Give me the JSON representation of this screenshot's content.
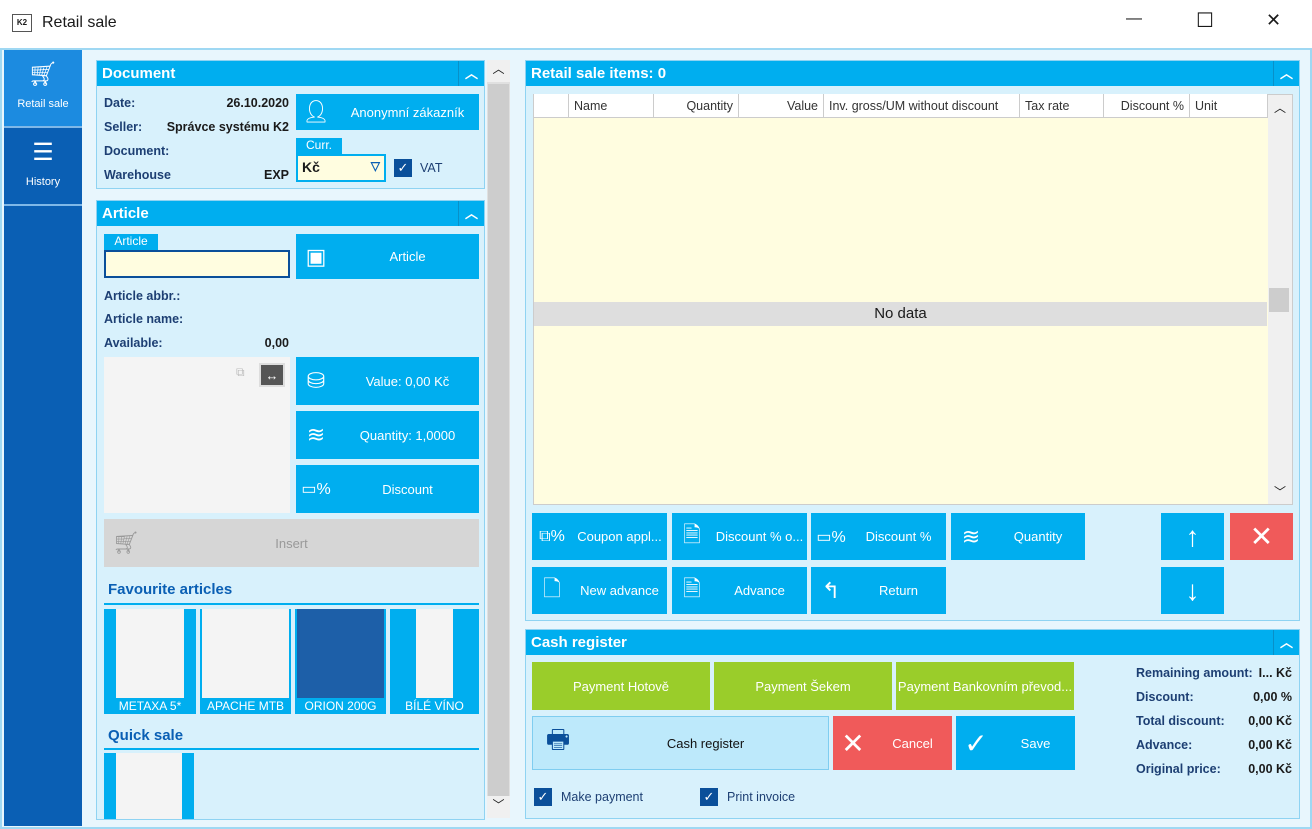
{
  "window": {
    "title": "Retail sale",
    "minimize": "—",
    "maximize": "☐",
    "close": "✕"
  },
  "nav": [
    {
      "label": "Retail sale",
      "icon": "cart-icon"
    },
    {
      "label": "History",
      "icon": "menu-icon"
    }
  ],
  "document": {
    "title": "Document",
    "date_label": "Date:",
    "date": "26.10.2020",
    "seller_label": "Seller:",
    "seller": "Správce systému K2",
    "document_label": "Document:",
    "warehouse_label": "Warehouse",
    "warehouse": "EXP",
    "customer_button": "Anonymní zákazník",
    "curr_label": "Curr.",
    "currency": "Kč",
    "vat_label": "VAT",
    "vat_checked": true
  },
  "article": {
    "title": "Article",
    "input_label": "Article",
    "input_value": "",
    "article_button": "Article",
    "abbr_label": "Article abbr.:",
    "name_label": "Article name:",
    "available_label": "Available:",
    "available": "0,00",
    "value_button": "Value: 0,00 Kč",
    "quantity_button": "Quantity: 1,0000",
    "discount_button": "Discount",
    "insert_button": "Insert"
  },
  "favourites": {
    "title": "Favourite articles",
    "items": [
      "METAXA 5*",
      "APACHE MTB",
      "ORION 200G",
      "BÍLÉ VÍNO"
    ]
  },
  "quick_sale": {
    "title": "Quick sale"
  },
  "items": {
    "title": "Retail sale items: 0",
    "columns": [
      "Name",
      "Quantity",
      "Value",
      "Inv. gross/UM without discount",
      "Tax rate",
      "Discount %",
      "Unit"
    ],
    "empty": "No data"
  },
  "actions": {
    "coupon": "Coupon appl...",
    "discount_o": "Discount % o...",
    "discount_pct": "Discount %",
    "quantity": "Quantity",
    "new_advance": "New advance",
    "advance": "Advance",
    "return": "Return"
  },
  "cash": {
    "title": "Cash register",
    "pay_cash": "Payment Hotově",
    "pay_check": "Payment Šekem",
    "pay_bank": "Payment Bankovním převod...",
    "register": "Cash register",
    "cancel": "Cancel",
    "save": "Save",
    "make_payment": "Make payment",
    "print_invoice": "Print invoice",
    "summary": [
      {
        "label": "Remaining amount:",
        "value": "I... Kč"
      },
      {
        "label": "Discount:",
        "value": "0,00 %"
      },
      {
        "label": "Total discount:",
        "value": "0,00 Kč"
      },
      {
        "label": "Advance:",
        "value": "0,00 Kč"
      },
      {
        "label": "Original price:",
        "value": "0,00 Kč"
      }
    ]
  },
  "colors": {
    "accent": "#00aeef",
    "nav": "#0a5fb4",
    "green": "#9acd2a",
    "red": "#f05a5a",
    "grid": "#fffde0"
  }
}
